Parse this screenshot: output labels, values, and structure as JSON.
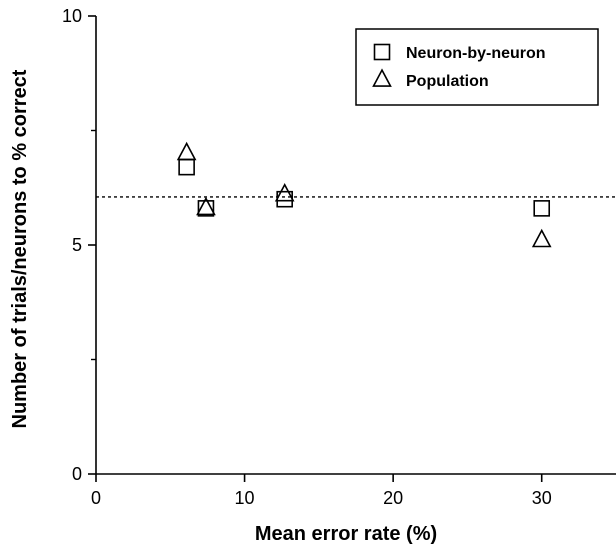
{
  "chart_data": {
    "type": "scatter",
    "title": "",
    "xlabel": "Mean error rate (%)",
    "ylabel": "Number of trials/neurons to % correct",
    "xlim": [
      0,
      35
    ],
    "ylim": [
      0,
      10
    ],
    "xticks": [
      0,
      10,
      20,
      30
    ],
    "yticks": [
      0,
      5,
      10
    ],
    "grid": false,
    "legend_position": "top-right",
    "reference_line": {
      "y": 6.05,
      "style": "dotted"
    },
    "series": [
      {
        "name": "Neuron-by-neuron",
        "marker": "square",
        "points": [
          {
            "x": 6.1,
            "y": 6.7
          },
          {
            "x": 7.4,
            "y": 5.8
          },
          {
            "x": 12.7,
            "y": 6.0
          },
          {
            "x": 30.0,
            "y": 5.8
          }
        ]
      },
      {
        "name": "Population",
        "marker": "triangle",
        "points": [
          {
            "x": 6.1,
            "y": 7.0
          },
          {
            "x": 7.4,
            "y": 5.8
          },
          {
            "x": 12.7,
            "y": 6.1
          },
          {
            "x": 30.0,
            "y": 5.1
          }
        ]
      }
    ]
  },
  "colors": {
    "axis": "#000000",
    "marker_stroke": "#000000",
    "marker_fill": "#ffffff",
    "background": "#ffffff"
  }
}
